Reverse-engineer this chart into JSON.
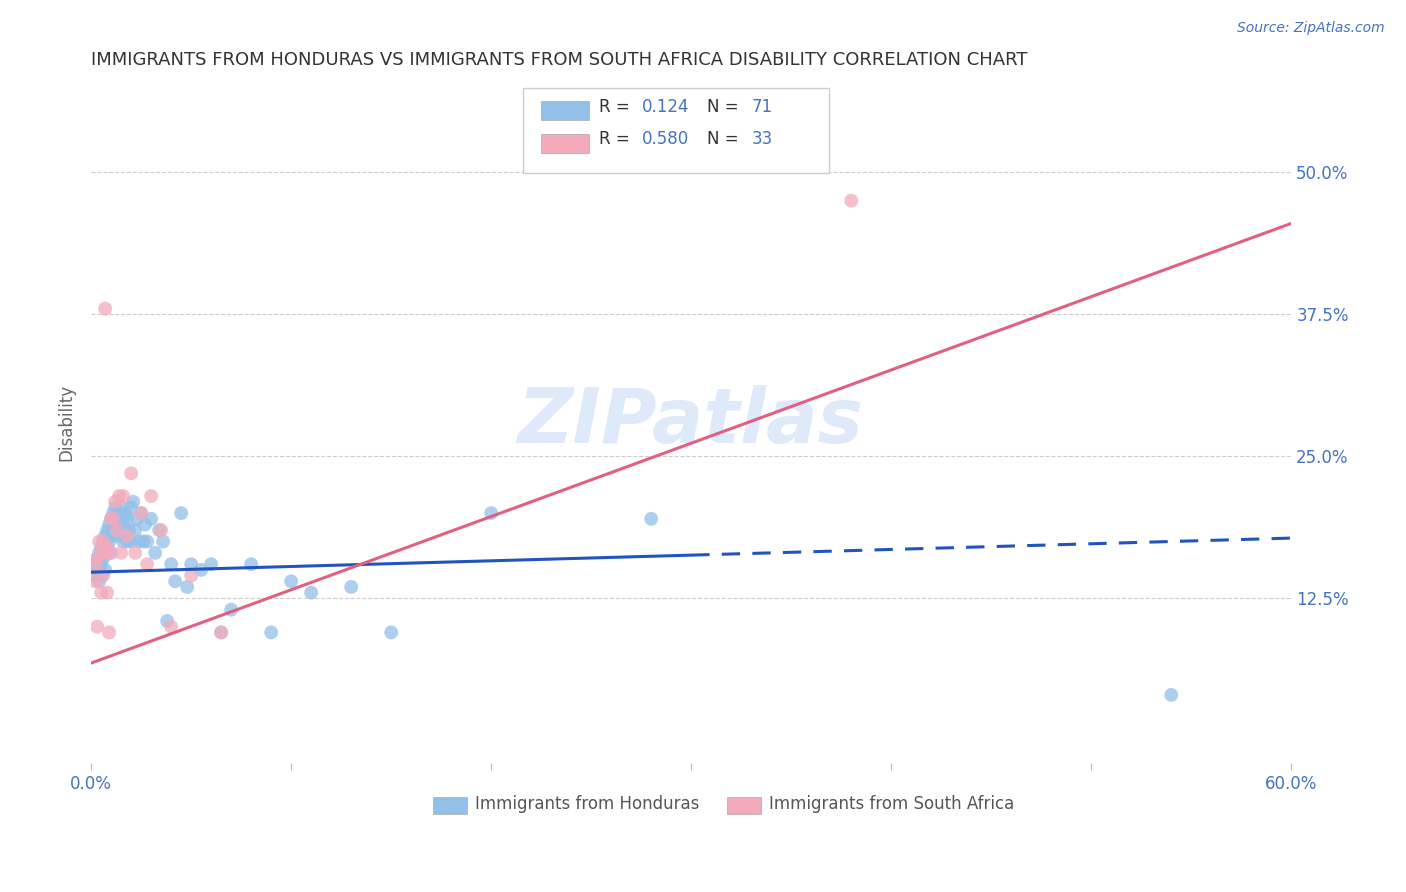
{
  "title": "IMMIGRANTS FROM HONDURAS VS IMMIGRANTS FROM SOUTH AFRICA DISABILITY CORRELATION CHART",
  "source": "Source: ZipAtlas.com",
  "ylabel": "Disability",
  "xlim": [
    0.0,
    0.6
  ],
  "ylim": [
    -0.02,
    0.58
  ],
  "ytick_labels_right": [
    "12.5%",
    "25.0%",
    "37.5%",
    "50.0%"
  ],
  "ytick_vals_right": [
    0.125,
    0.25,
    0.375,
    0.5
  ],
  "watermark": "ZIPatlas",
  "blue_color": "#92C0E8",
  "pink_color": "#F4AABB",
  "blue_line_color": "#2255BB",
  "pink_line_color": "#E06080",
  "axis_label_color": "#4472C4",
  "title_color": "#333333",
  "grid_color": "#CCCCCC",
  "honduras_x": [
    0.002,
    0.002,
    0.003,
    0.003,
    0.004,
    0.004,
    0.005,
    0.005,
    0.005,
    0.006,
    0.006,
    0.007,
    0.007,
    0.007,
    0.008,
    0.008,
    0.009,
    0.009,
    0.01,
    0.01,
    0.01,
    0.011,
    0.011,
    0.012,
    0.012,
    0.013,
    0.013,
    0.014,
    0.014,
    0.015,
    0.015,
    0.016,
    0.016,
    0.017,
    0.017,
    0.018,
    0.018,
    0.019,
    0.02,
    0.02,
    0.021,
    0.022,
    0.023,
    0.024,
    0.025,
    0.026,
    0.027,
    0.028,
    0.03,
    0.032,
    0.034,
    0.036,
    0.038,
    0.04,
    0.042,
    0.045,
    0.048,
    0.05,
    0.055,
    0.06,
    0.065,
    0.07,
    0.08,
    0.09,
    0.1,
    0.11,
    0.13,
    0.15,
    0.2,
    0.28,
    0.54
  ],
  "honduras_y": [
    0.155,
    0.145,
    0.16,
    0.15,
    0.165,
    0.14,
    0.17,
    0.155,
    0.145,
    0.175,
    0.16,
    0.18,
    0.165,
    0.15,
    0.185,
    0.17,
    0.19,
    0.175,
    0.195,
    0.18,
    0.165,
    0.2,
    0.185,
    0.205,
    0.19,
    0.195,
    0.18,
    0.2,
    0.185,
    0.205,
    0.19,
    0.195,
    0.175,
    0.2,
    0.185,
    0.195,
    0.175,
    0.185,
    0.205,
    0.175,
    0.21,
    0.185,
    0.195,
    0.175,
    0.2,
    0.175,
    0.19,
    0.175,
    0.195,
    0.165,
    0.185,
    0.175,
    0.105,
    0.155,
    0.14,
    0.2,
    0.135,
    0.155,
    0.15,
    0.155,
    0.095,
    0.115,
    0.155,
    0.095,
    0.14,
    0.13,
    0.135,
    0.095,
    0.2,
    0.195,
    0.04
  ],
  "sa_x": [
    0.002,
    0.002,
    0.003,
    0.003,
    0.004,
    0.005,
    0.005,
    0.006,
    0.006,
    0.007,
    0.007,
    0.008,
    0.008,
    0.009,
    0.009,
    0.01,
    0.011,
    0.012,
    0.013,
    0.014,
    0.015,
    0.016,
    0.018,
    0.02,
    0.022,
    0.025,
    0.028,
    0.03,
    0.035,
    0.04,
    0.05,
    0.065,
    0.38
  ],
  "sa_y": [
    0.155,
    0.14,
    0.16,
    0.1,
    0.175,
    0.165,
    0.13,
    0.175,
    0.145,
    0.38,
    0.165,
    0.17,
    0.13,
    0.165,
    0.095,
    0.195,
    0.195,
    0.21,
    0.185,
    0.215,
    0.165,
    0.215,
    0.18,
    0.235,
    0.165,
    0.2,
    0.155,
    0.215,
    0.185,
    0.1,
    0.145,
    0.095,
    0.475
  ],
  "blue_line_x": [
    0.0,
    0.3,
    0.3,
    0.6
  ],
  "blue_line_style": [
    "solid",
    "solid",
    "dashed",
    "dashed"
  ],
  "blue_line_y_start": 0.148,
  "blue_line_y_end": 0.178,
  "pink_line_y_start": 0.068,
  "pink_line_y_end": 0.455
}
